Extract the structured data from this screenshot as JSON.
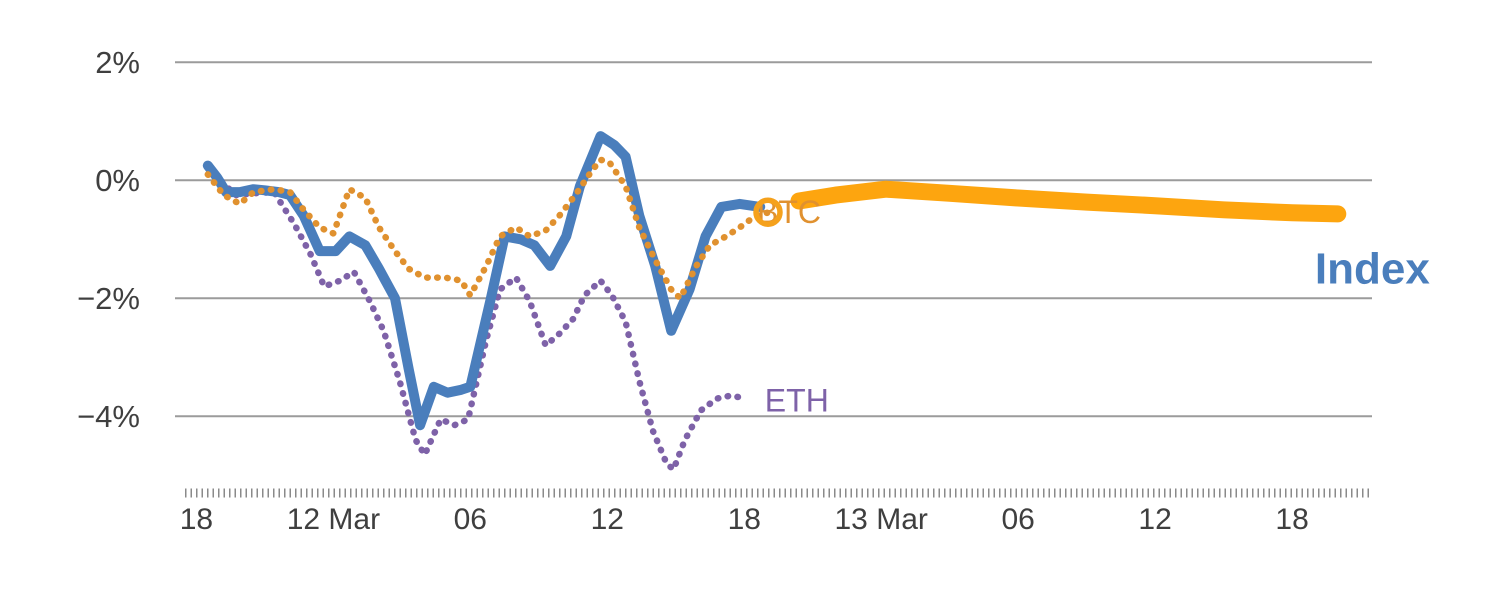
{
  "chart_data": {
    "type": "line",
    "title": "",
    "xlabel": "",
    "ylabel": "",
    "grid": true,
    "legend_position": "inline-labels",
    "xlim": [
      -0.5,
      51.5
    ],
    "ylim": [
      -5.3,
      2.7
    ],
    "x_unit": "hours (ticks are times of day)",
    "colors": {
      "grid": "#9B9B9B",
      "axis": "#8A8A8A",
      "tick_text": "#3F3F3F"
    },
    "yticks": [
      {
        "value": 2,
        "label": "2%"
      },
      {
        "value": 0,
        "label": "0%"
      },
      {
        "value": -2,
        "label": "−2%"
      },
      {
        "value": -4,
        "label": "−4%"
      }
    ],
    "xticks": [
      {
        "value": 0,
        "label": "18"
      },
      {
        "value": 6,
        "label": "12 Mar"
      },
      {
        "value": 12,
        "label": "06"
      },
      {
        "value": 18,
        "label": "12"
      },
      {
        "value": 24,
        "label": "18"
      },
      {
        "value": 30,
        "label": "13 Mar"
      },
      {
        "value": 36,
        "label": "06"
      },
      {
        "value": 42,
        "label": "12"
      },
      {
        "value": 48,
        "label": "18"
      }
    ],
    "series": [
      {
        "id": "eth",
        "name": "ETH",
        "color": "#7E62A8",
        "style": "dotted",
        "width": 6.5,
        "label": {
          "x": 24.9,
          "y": -3.73,
          "size": 32,
          "weight": "normal"
        },
        "points": [
          [
            0.8,
            0.1
          ],
          [
            1.7,
            -0.25
          ],
          [
            2.5,
            -0.22
          ],
          [
            3.4,
            -0.2
          ],
          [
            4.3,
            -0.75
          ],
          [
            5.0,
            -1.25
          ],
          [
            5.6,
            -1.8
          ],
          [
            6.3,
            -1.7
          ],
          [
            6.9,
            -1.55
          ],
          [
            7.6,
            -2.05
          ],
          [
            8.2,
            -2.55
          ],
          [
            8.9,
            -3.4
          ],
          [
            9.6,
            -4.4
          ],
          [
            10.0,
            -4.65
          ],
          [
            10.7,
            -4.05
          ],
          [
            11.3,
            -4.15
          ],
          [
            11.9,
            -4.05
          ],
          [
            12.7,
            -2.7
          ],
          [
            13.3,
            -1.85
          ],
          [
            14.0,
            -1.65
          ],
          [
            14.6,
            -2.05
          ],
          [
            15.3,
            -2.8
          ],
          [
            15.9,
            -2.6
          ],
          [
            16.5,
            -2.35
          ],
          [
            17.0,
            -1.95
          ],
          [
            17.7,
            -1.7
          ],
          [
            18.2,
            -1.95
          ],
          [
            18.8,
            -2.4
          ],
          [
            19.4,
            -3.4
          ],
          [
            20.0,
            -4.25
          ],
          [
            20.6,
            -4.8
          ],
          [
            20.9,
            -4.9
          ],
          [
            21.4,
            -4.4
          ],
          [
            22.1,
            -3.9
          ],
          [
            22.8,
            -3.7
          ],
          [
            23.4,
            -3.65
          ],
          [
            24.1,
            -3.7
          ]
        ]
      },
      {
        "id": "index",
        "name": "Index",
        "color": "#4A7EBC",
        "style": "solid",
        "width": 10,
        "label": {
          "x": 49.0,
          "y": -1.5,
          "size": 44,
          "weight": "bold"
        },
        "points": [
          [
            0.5,
            0.25
          ],
          [
            0.9,
            0.05
          ],
          [
            1.3,
            -0.2
          ],
          [
            1.9,
            -0.2
          ],
          [
            2.5,
            -0.15
          ],
          [
            3.0,
            -0.17
          ],
          [
            3.6,
            -0.2
          ],
          [
            4.1,
            -0.25
          ],
          [
            4.7,
            -0.6
          ],
          [
            5.4,
            -1.2
          ],
          [
            6.1,
            -1.2
          ],
          [
            6.7,
            -0.95
          ],
          [
            7.4,
            -1.1
          ],
          [
            8.0,
            -1.5
          ],
          [
            8.7,
            -2.0
          ],
          [
            9.3,
            -3.2
          ],
          [
            9.8,
            -4.15
          ],
          [
            10.4,
            -3.5
          ],
          [
            11.0,
            -3.6
          ],
          [
            11.6,
            -3.55
          ],
          [
            12.0,
            -3.5
          ],
          [
            12.9,
            -2.0
          ],
          [
            13.5,
            -0.95
          ],
          [
            14.2,
            -1.0
          ],
          [
            14.8,
            -1.1
          ],
          [
            15.5,
            -1.45
          ],
          [
            16.2,
            -0.95
          ],
          [
            16.8,
            -0.1
          ],
          [
            17.7,
            0.75
          ],
          [
            18.3,
            0.6
          ],
          [
            18.8,
            0.4
          ],
          [
            19.4,
            -0.6
          ],
          [
            20.1,
            -1.45
          ],
          [
            20.8,
            -2.55
          ],
          [
            21.6,
            -1.85
          ],
          [
            22.3,
            -0.95
          ],
          [
            23.0,
            -0.45
          ],
          [
            23.8,
            -0.4
          ],
          [
            24.7,
            -0.45
          ]
        ]
      },
      {
        "id": "btc",
        "name": "BTC",
        "color": "#E0912F",
        "style": "dotted",
        "width": 6.5,
        "label": {
          "x": 24.56,
          "y": -0.54,
          "size": 32,
          "weight": "normal"
        },
        "marker": {
          "x": 25.04,
          "y": -0.54,
          "radius": 12,
          "color": "#F5A11C"
        },
        "points": [
          [
            0.5,
            0.1
          ],
          [
            1.2,
            -0.25
          ],
          [
            1.9,
            -0.4
          ],
          [
            2.5,
            -0.2
          ],
          [
            3.4,
            -0.15
          ],
          [
            4.1,
            -0.2
          ],
          [
            4.7,
            -0.5
          ],
          [
            5.4,
            -0.8
          ],
          [
            6.0,
            -0.9
          ],
          [
            6.7,
            -0.15
          ],
          [
            7.4,
            -0.3
          ],
          [
            8.0,
            -0.8
          ],
          [
            8.7,
            -1.2
          ],
          [
            9.3,
            -1.5
          ],
          [
            10.0,
            -1.65
          ],
          [
            10.9,
            -1.65
          ],
          [
            11.6,
            -1.7
          ],
          [
            12.0,
            -1.95
          ],
          [
            12.7,
            -1.45
          ],
          [
            13.3,
            -0.95
          ],
          [
            14.0,
            -0.8
          ],
          [
            14.6,
            -0.95
          ],
          [
            15.3,
            -0.85
          ],
          [
            15.9,
            -0.6
          ],
          [
            16.6,
            -0.25
          ],
          [
            17.3,
            0.15
          ],
          [
            17.7,
            0.35
          ],
          [
            18.1,
            0.3
          ],
          [
            18.8,
            -0.1
          ],
          [
            19.4,
            -0.8
          ],
          [
            20.1,
            -1.35
          ],
          [
            20.8,
            -1.85
          ],
          [
            21.2,
            -2.0
          ],
          [
            21.9,
            -1.45
          ],
          [
            22.5,
            -1.1
          ],
          [
            23.2,
            -0.95
          ],
          [
            23.8,
            -0.8
          ],
          [
            24.5,
            -0.6
          ],
          [
            25.0,
            -0.55
          ]
        ]
      },
      {
        "id": "btc-extended",
        "name": "BTC",
        "color": "#FDA50F",
        "style": "solid",
        "width": 17,
        "points": [
          [
            26.4,
            -0.35
          ],
          [
            28.0,
            -0.25
          ],
          [
            30.2,
            -0.15
          ],
          [
            33.0,
            -0.22
          ],
          [
            36.0,
            -0.3
          ],
          [
            39.0,
            -0.37
          ],
          [
            42.0,
            -0.43
          ],
          [
            45.0,
            -0.5
          ],
          [
            48.0,
            -0.55
          ],
          [
            50.0,
            -0.57
          ]
        ]
      }
    ]
  }
}
